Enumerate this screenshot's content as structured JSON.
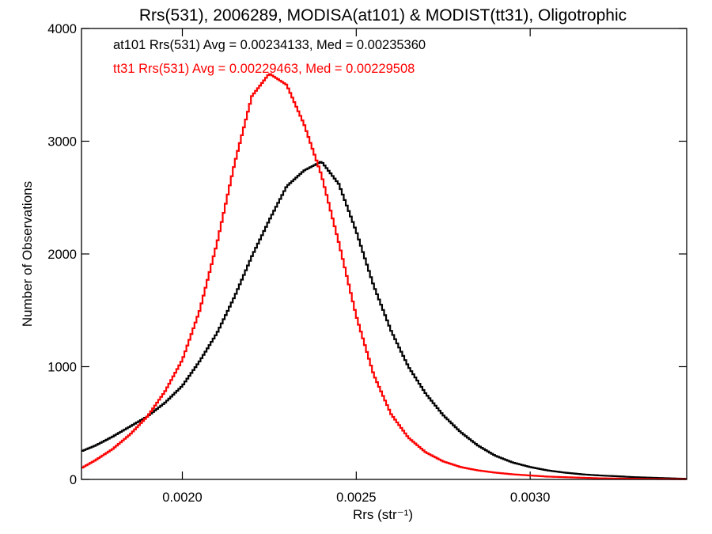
{
  "chart_data": {
    "type": "line",
    "title": "Rrs(531), 2006289, MODISA(at101) & MODIST(tt31), Oligotrophic",
    "xlabel": "Rrs (str⁻¹)",
    "ylabel": "Number of Observations",
    "xlim": [
      0.00171,
      0.00345
    ],
    "ylim": [
      0,
      4000
    ],
    "x_ticks": [
      0.002,
      0.0025,
      0.003
    ],
    "x_tick_labels": [
      "0.0020",
      "0.0025",
      "0.0030"
    ],
    "y_ticks": [
      0,
      1000,
      2000,
      3000,
      4000
    ],
    "y_tick_labels": [
      "0",
      "1000",
      "2000",
      "3000",
      "4000"
    ],
    "grid": false,
    "step": true,
    "annotations": [
      {
        "text": "at101 Rrs(531) Avg = 0.00234133, Med = 0.00235360",
        "color": "#000000"
      },
      {
        "text": "tt31 Rrs(531) Avg = 0.00229463, Med = 0.00229508",
        "color": "#ff0000"
      }
    ],
    "series": [
      {
        "color": "#000000",
        "x": [
          0.00171,
          0.00175,
          0.0018,
          0.00185,
          0.0019,
          0.00195,
          0.002,
          0.00205,
          0.0021,
          0.00215,
          0.0022,
          0.00225,
          0.0023,
          0.00235,
          0.0024,
          0.00245,
          0.0025,
          0.00255,
          0.0026,
          0.00265,
          0.0027,
          0.00275,
          0.0028,
          0.00285,
          0.0029,
          0.00295,
          0.003,
          0.00305,
          0.0031,
          0.00315,
          0.0032,
          0.00325,
          0.0033,
          0.00335,
          0.0034,
          0.00345
        ],
        "values": [
          250,
          300,
          380,
          470,
          560,
          680,
          830,
          1050,
          1300,
          1620,
          1980,
          2300,
          2600,
          2740,
          2820,
          2620,
          2200,
          1720,
          1320,
          1000,
          760,
          570,
          420,
          300,
          210,
          150,
          110,
          80,
          60,
          45,
          35,
          28,
          20,
          15,
          10,
          5
        ]
      },
      {
        "color": "#ff0000",
        "x": [
          0.00171,
          0.00175,
          0.0018,
          0.00185,
          0.0019,
          0.00195,
          0.002,
          0.00205,
          0.0021,
          0.00215,
          0.0022,
          0.00225,
          0.0023,
          0.00235,
          0.0024,
          0.00245,
          0.0025,
          0.00255,
          0.0026,
          0.00265,
          0.0027,
          0.00275,
          0.0028,
          0.00285,
          0.0029,
          0.00295,
          0.003,
          0.00305,
          0.0031,
          0.00315,
          0.0032,
          0.00325,
          0.0033,
          0.00335,
          0.0034,
          0.00345
        ],
        "values": [
          100,
          170,
          270,
          400,
          560,
          780,
          1060,
          1500,
          2100,
          2800,
          3400,
          3600,
          3500,
          3150,
          2700,
          2100,
          1450,
          930,
          580,
          370,
          240,
          160,
          110,
          80,
          60,
          45,
          35,
          25,
          20,
          15,
          10,
          8,
          6,
          4,
          3,
          2
        ]
      }
    ]
  }
}
